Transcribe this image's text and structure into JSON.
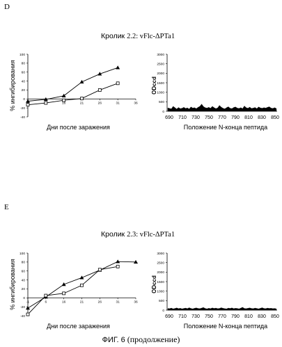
{
  "panels": [
    {
      "letter": "D",
      "title_main": "Кролик",
      "title_sub": "2.2: vFlc-ΔPTa1"
    },
    {
      "letter": "E",
      "title_main": "Кролик",
      "title_sub": "2.3: vFlc-ΔPTa1"
    }
  ],
  "figure": {
    "caption_main": "ФИГ. 6",
    "caption_sub": "(продолжение)"
  },
  "chart_data": [
    {
      "type": "line",
      "panel": "D",
      "xlabel": "Дни после заражения",
      "ylabel": "% ингибирования",
      "categories": [
        "-1",
        "6",
        "16",
        "21",
        "26",
        "31",
        "36"
      ],
      "ylim": [
        -40,
        100
      ],
      "yticks": [
        "100",
        "80",
        "60",
        "40",
        "20",
        "0",
        "-20",
        "-40"
      ],
      "series": [
        {
          "marker": "filled-triangle",
          "values": [
            -5,
            -1,
            7,
            38,
            56,
            70,
            null
          ]
        },
        {
          "marker": "open-square",
          "values": [
            -13,
            -9,
            -3,
            1,
            20,
            35,
            null
          ]
        }
      ]
    },
    {
      "type": "area",
      "panel": "D",
      "xlabel": "Положение N-конца пептида",
      "ylabel": "ODccd",
      "categories": [
        "690",
        "710",
        "730",
        "750",
        "770",
        "790",
        "810",
        "830",
        "850"
      ],
      "ylim": [
        0,
        3000
      ],
      "yticks": [
        "3000",
        "2500",
        "2000",
        "1500",
        "1000",
        "500",
        "0"
      ],
      "profile": [
        180,
        150,
        130,
        260,
        190,
        120,
        200,
        140,
        160,
        210,
        150,
        180,
        120,
        230,
        170,
        190,
        140,
        210,
        260,
        380,
        250,
        190,
        170,
        210,
        160,
        260,
        190,
        140,
        180,
        310,
        220,
        160,
        130,
        190,
        240,
        160,
        140,
        200,
        230,
        170,
        150,
        190,
        140,
        280,
        190,
        160,
        220,
        150,
        170,
        200,
        140,
        230,
        180,
        160,
        190,
        170,
        210,
        240,
        170,
        150,
        190,
        140
      ]
    },
    {
      "type": "line",
      "panel": "E",
      "xlabel": "Дни после заражения",
      "ylabel": "% ингибирования",
      "categories": [
        "-1",
        "6",
        "16",
        "21",
        "26",
        "31",
        "36"
      ],
      "ylim": [
        -40,
        100
      ],
      "yticks": [
        "100",
        "80",
        "60",
        "40",
        "20",
        "0",
        "-20",
        "-40"
      ],
      "series": [
        {
          "marker": "filled-triangle",
          "values": [
            -23,
            2,
            30,
            45,
            62,
            81,
            80
          ]
        },
        {
          "marker": "open-square",
          "values": [
            -37,
            5,
            10,
            28,
            63,
            70,
            null
          ]
        }
      ]
    },
    {
      "type": "area",
      "panel": "E",
      "xlabel": "Положение N-конца пептида",
      "ylabel": "ODccd",
      "categories": [
        "690",
        "710",
        "730",
        "750",
        "770",
        "790",
        "810",
        "830",
        "850"
      ],
      "ylim": [
        0,
        3000
      ],
      "yticks": [
        "3000",
        "2500",
        "2000",
        "1500",
        "1000",
        "500",
        "0"
      ],
      "profile": [
        90,
        80,
        110,
        70,
        90,
        120,
        80,
        100,
        70,
        90,
        110,
        80,
        130,
        90,
        70,
        100,
        120,
        90,
        80,
        110,
        140,
        90,
        70,
        100,
        80,
        120,
        90,
        110,
        80,
        90,
        130,
        100,
        80,
        70,
        110,
        90,
        120,
        80,
        100,
        90,
        70,
        110,
        150,
        90,
        80,
        100,
        120,
        90,
        80,
        110,
        90,
        70,
        100,
        130,
        90,
        80,
        110,
        90,
        100,
        80,
        90,
        70
      ]
    }
  ]
}
